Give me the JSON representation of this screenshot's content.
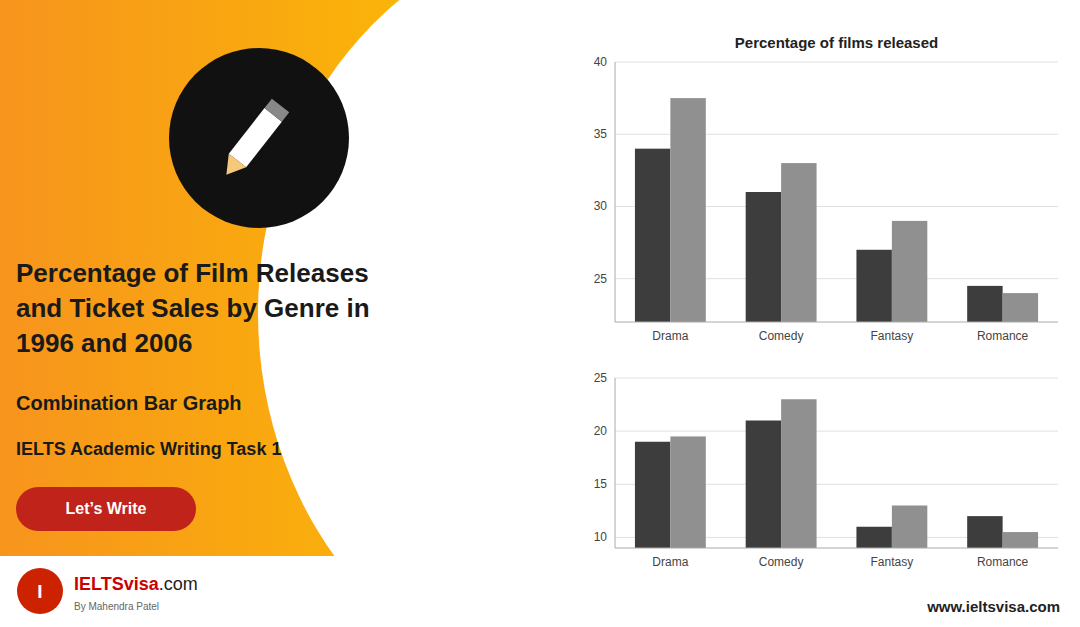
{
  "title": "Percentage of Film Releases\nand Ticket Sales by Genre in\n1996 and 2006",
  "subtitle": [
    "Combination Bar Graph",
    "IELTS Academic Writing Task 1"
  ],
  "annotations": [
    "Let’s Write",
    "I",
    "IELTSvisa",
    ".com",
    "By Mahendra Patel",
    "www.ieltsvisa.com"
  ],
  "chart_data": [
    {
      "type": "bar",
      "title": "Percentage of films released",
      "categories": [
        "Drama",
        "Comedy",
        "Fantasy",
        "Romance"
      ],
      "series": [
        {
          "color": "#3d3d3d",
          "values": [
            34,
            31,
            27,
            24.5
          ]
        },
        {
          "color": "#909090",
          "values": [
            37.5,
            33,
            29,
            24
          ]
        }
      ],
      "ylim": [
        22,
        40
      ],
      "yticks": [
        25,
        30,
        35,
        40
      ],
      "grid": true
    },
    {
      "type": "bar",
      "categories": [
        "Drama",
        "Comedy",
        "Fantasy",
        "Romance"
      ],
      "series": [
        {
          "color": "#3d3d3d",
          "values": [
            19,
            21,
            11,
            12
          ]
        },
        {
          "color": "#909090",
          "values": [
            19.5,
            23,
            13,
            10.5
          ]
        }
      ],
      "ylim": [
        9,
        25
      ],
      "yticks": [
        10,
        15,
        20,
        25
      ],
      "grid": true
    }
  ]
}
